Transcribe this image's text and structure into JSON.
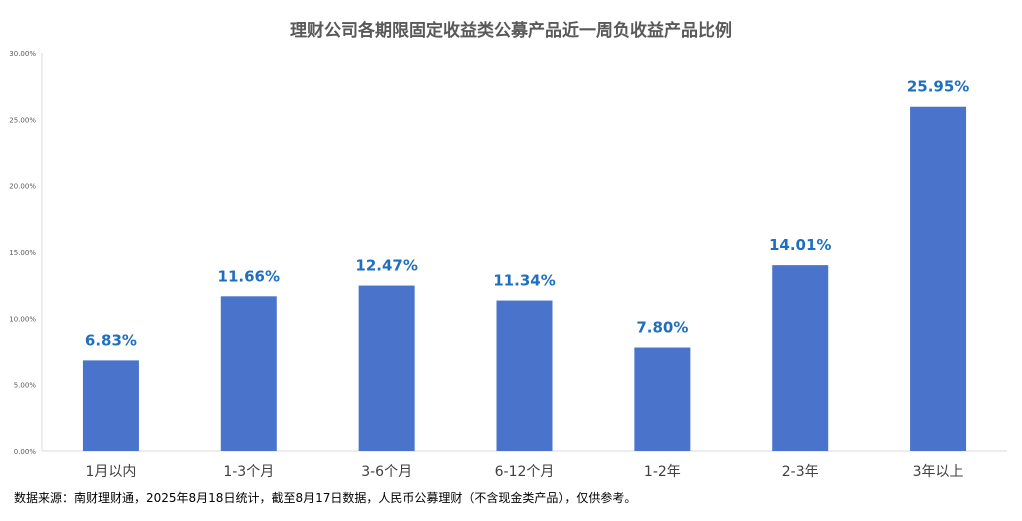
{
  "chart_data": {
    "type": "bar",
    "title": "理财公司各期限固定收益类公募产品近一周负收益产品比例",
    "categories": [
      "1月以内",
      "1-3个月",
      "3-6个月",
      "6-12个月",
      "1-2年",
      "2-3年",
      "3年以上"
    ],
    "values": [
      6.83,
      11.66,
      12.47,
      11.34,
      7.8,
      14.01,
      25.95
    ],
    "value_labels": [
      "6.83%",
      "11.66%",
      "12.47%",
      "11.34%",
      "7.80%",
      "14.01%",
      "25.95%"
    ],
    "ylim": [
      0,
      30
    ],
    "yticks": [
      0,
      5,
      10,
      15,
      20,
      25,
      30
    ],
    "ytick_labels": [
      "0.00%",
      "5.00%",
      "10.00%",
      "15.00%",
      "20.00%",
      "25.00%",
      "30.00%"
    ],
    "xlabel": "",
    "ylabel": "",
    "grid": false,
    "legend": "none",
    "bar_color": "#4A74CB",
    "label_color": "#1F6FBF"
  },
  "footnote": "数据来源：南财理财通，2025年8月18日统计，截至8月17日数据，人民币公募理财（不含现金类产品），仅供参考。"
}
